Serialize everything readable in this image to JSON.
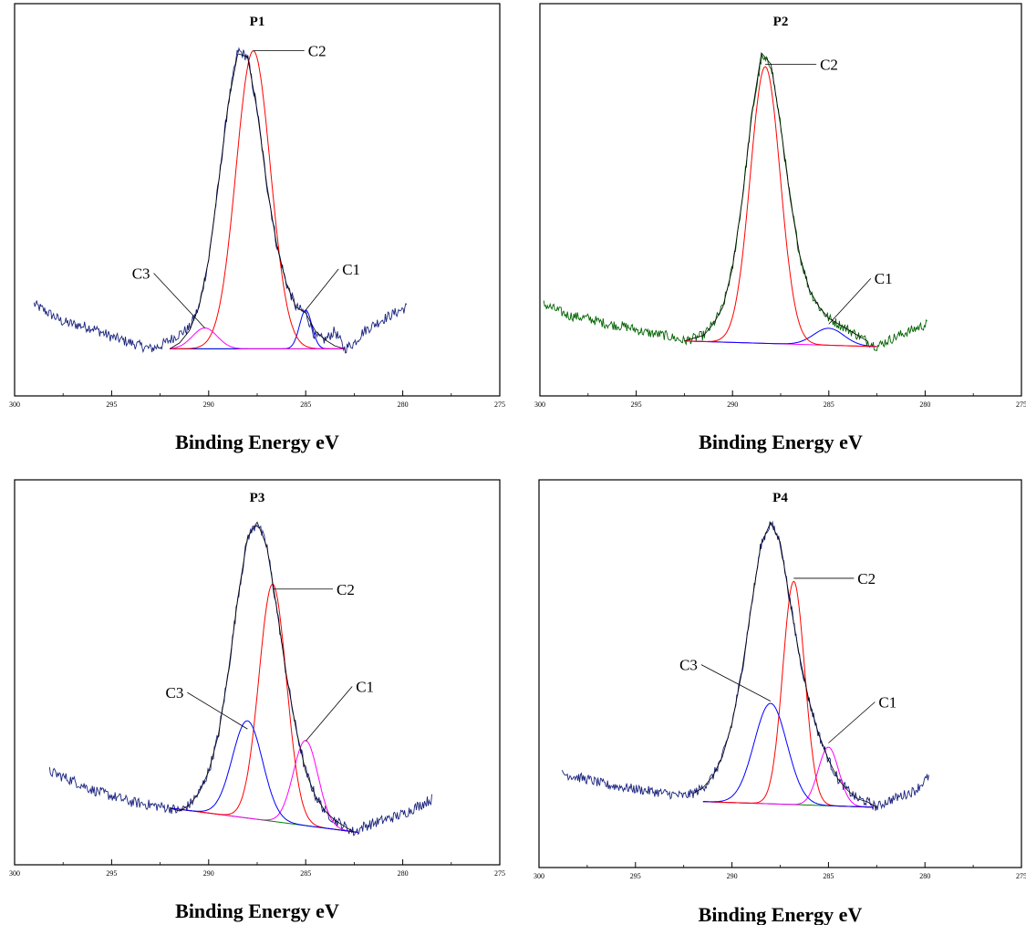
{
  "figure": {
    "colors": {
      "frame": "#000000",
      "text": "#000000"
    }
  },
  "chart_data": [
    {
      "type": "line",
      "title": "P1",
      "xlabel": "Binding Energy eV",
      "ylabel": "",
      "xlim": [
        300,
        275
      ],
      "ylim": [
        0,
        1
      ],
      "xticks": [
        300,
        295,
        290,
        285,
        280,
        275
      ],
      "grid": false,
      "legend": "none",
      "raw": {
        "color": "#1a237e",
        "x": [
          299,
          297.5,
          296,
          295,
          294,
          293,
          292.5,
          292,
          291.5,
          291,
          290.5,
          290,
          289.5,
          289,
          288.5,
          288,
          287.5,
          287,
          286.5,
          286,
          285.5,
          285,
          284.5,
          284,
          283.5,
          283,
          282.5,
          282,
          281,
          279.8
        ],
        "y": [
          0.15,
          0.09,
          0.07,
          0.04,
          0.02,
          0.0,
          0.01,
          0.03,
          0.05,
          0.07,
          0.14,
          0.3,
          0.55,
          0.82,
          1.0,
          0.98,
          0.8,
          0.55,
          0.35,
          0.22,
          0.14,
          0.12,
          0.04,
          0.03,
          0.06,
          0.0,
          0.02,
          0.06,
          0.1,
          0.14
        ]
      },
      "envelope": {
        "color": "#000000",
        "x": [
          292,
          291.5,
          291,
          290.5,
          290,
          289.5,
          289,
          288.5,
          288,
          287.5,
          287,
          286.5,
          286,
          285.5,
          285,
          284.5,
          284,
          283.5,
          283
        ],
        "y": [
          0.0,
          0.02,
          0.06,
          0.14,
          0.3,
          0.55,
          0.82,
          0.99,
          0.98,
          0.8,
          0.55,
          0.35,
          0.22,
          0.14,
          0.12,
          0.06,
          0.03,
          0.01,
          0.0
        ]
      },
      "components": [
        {
          "label": "C1",
          "center": 285.0,
          "height": 0.13,
          "width": 0.45,
          "color": "#0000ff"
        },
        {
          "label": "C2",
          "center": 287.7,
          "height": 1.0,
          "width": 1.25,
          "color": "#ff0000"
        },
        {
          "label": "C3",
          "center": 290.2,
          "height": 0.07,
          "width": 0.9,
          "color": "#ff00ff"
        }
      ],
      "baseline": {
        "color": "#008000",
        "x": [
          292,
          283
        ],
        "y": [
          0.0,
          0.0
        ]
      },
      "annotations": [
        {
          "text": "C2",
          "x": 287.7,
          "y": 1.0
        },
        {
          "text": "C1",
          "x": 285.0,
          "y": 0.13
        },
        {
          "text": "C3",
          "x": 290.2,
          "y": 0.07
        }
      ]
    },
    {
      "type": "line",
      "title": "P2",
      "xlabel": "Binding Energy eV",
      "ylabel": "",
      "xlim": [
        300,
        275
      ],
      "ylim": [
        0,
        1
      ],
      "xticks": [
        300,
        295,
        290,
        285,
        280,
        275
      ],
      "grid": false,
      "legend": "none",
      "raw": {
        "color": "#006400",
        "x": [
          299.8,
          298.5,
          297.5,
          296.5,
          295.5,
          294.5,
          293.5,
          292.5,
          291.5,
          291,
          290.5,
          290,
          289.5,
          289,
          288.5,
          288,
          287.5,
          287,
          286.5,
          286,
          285.5,
          285,
          284.5,
          284,
          283.5,
          283,
          282.5,
          282,
          281,
          279.9
        ],
        "y": [
          0.13,
          0.09,
          0.08,
          0.06,
          0.05,
          0.03,
          0.02,
          0.0,
          0.02,
          0.06,
          0.12,
          0.26,
          0.5,
          0.8,
          1.0,
          0.98,
          0.76,
          0.5,
          0.3,
          0.18,
          0.12,
          0.08,
          0.06,
          0.04,
          0.02,
          0.0,
          -0.02,
          0.0,
          0.03,
          0.06
        ]
      },
      "envelope": {
        "color": "#000000",
        "x": [
          292.5,
          291.5,
          291,
          290.5,
          290,
          289.5,
          289,
          288.5,
          288,
          287.5,
          287,
          286.5,
          286,
          285.5,
          285,
          284.5,
          284,
          283.5,
          283
        ],
        "y": [
          0.0,
          0.02,
          0.06,
          0.12,
          0.26,
          0.5,
          0.8,
          1.02,
          0.98,
          0.76,
          0.5,
          0.3,
          0.18,
          0.12,
          0.08,
          0.06,
          0.04,
          0.02,
          0.0
        ]
      },
      "components": [
        {
          "label": "C1",
          "center": 285.0,
          "height": 0.06,
          "width": 1.1,
          "color": "#0000ff"
        },
        {
          "label": "C2",
          "center": 288.3,
          "height": 0.98,
          "width": 1.1,
          "color": "#ff0000"
        }
      ],
      "baseline": {
        "color": "#ff00ff",
        "x": [
          292.5,
          282.5
        ],
        "y": [
          0.0,
          -0.02
        ]
      },
      "annotations": [
        {
          "text": "C2",
          "x": 288.3,
          "y": 0.98
        },
        {
          "text": "C1",
          "x": 285.0,
          "y": 0.06
        }
      ]
    },
    {
      "type": "line",
      "title": "P3",
      "xlabel": "Binding Energy eV",
      "ylabel": "",
      "xlim": [
        300,
        275
      ],
      "ylim": [
        0,
        1
      ],
      "xticks": [
        300,
        295,
        290,
        285,
        280,
        275
      ],
      "grid": false,
      "legend": "none",
      "raw": {
        "color": "#1a237e",
        "x": [
          298.2,
          297,
          296,
          295,
          294,
          293,
          292,
          291.5,
          291,
          290.5,
          290,
          289.5,
          289,
          288.5,
          288,
          287.5,
          287,
          286.5,
          286,
          285.5,
          285,
          284.5,
          284,
          283.5,
          283,
          282.5,
          282,
          281.5,
          280,
          278.5
        ],
        "y": [
          0.18,
          0.15,
          0.12,
          0.1,
          0.08,
          0.07,
          0.06,
          0.05,
          0.07,
          0.11,
          0.18,
          0.3,
          0.5,
          0.75,
          0.95,
          1.0,
          0.92,
          0.72,
          0.5,
          0.32,
          0.18,
          0.1,
          0.05,
          0.02,
          0.0,
          -0.02,
          0.0,
          0.01,
          0.04,
          0.09
        ]
      },
      "envelope": {
        "color": "#000000",
        "x": [
          292,
          291.5,
          291,
          290.5,
          290,
          289.5,
          289,
          288.5,
          288,
          287.5,
          287,
          286.5,
          286,
          285.5,
          285,
          284.5,
          284,
          283.5,
          283,
          282.5
        ],
        "y": [
          0.06,
          0.05,
          0.07,
          0.11,
          0.18,
          0.3,
          0.5,
          0.75,
          0.95,
          1.0,
          0.92,
          0.72,
          0.5,
          0.32,
          0.18,
          0.1,
          0.05,
          0.02,
          0.0,
          -0.02
        ]
      },
      "components": [
        {
          "label": "C1",
          "center": 285.0,
          "height": 0.28,
          "width": 0.9,
          "color": "#ff00ff"
        },
        {
          "label": "C2",
          "center": 286.7,
          "height": 0.78,
          "width": 1.0,
          "color": "#ff0000"
        },
        {
          "label": "C3",
          "center": 288.0,
          "height": 0.32,
          "width": 1.1,
          "color": "#0000ff"
        }
      ],
      "baseline": {
        "color": "#008000",
        "x": [
          292,
          282.3
        ],
        "y": [
          0.06,
          -0.02
        ]
      },
      "annotations": [
        {
          "text": "C2",
          "x": 286.7,
          "y": 0.78
        },
        {
          "text": "C1",
          "x": 285.0,
          "y": 0.28
        },
        {
          "text": "C3",
          "x": 288.0,
          "y": 0.32
        }
      ]
    },
    {
      "type": "line",
      "title": "P4",
      "xlabel": "Binding Energy eV",
      "ylabel": "",
      "xlim": [
        300,
        275
      ],
      "ylim": [
        0,
        1
      ],
      "xticks": [
        300,
        295,
        290,
        285,
        280,
        275
      ],
      "grid": false,
      "legend": "none",
      "raw": {
        "color": "#1a237e",
        "x": [
          298.8,
          297.5,
          296.5,
          295.5,
          294.5,
          293.5,
          292.5,
          292,
          291.5,
          291,
          290.5,
          290,
          289.5,
          289,
          288.5,
          288,
          287.5,
          287,
          286.5,
          286,
          285.5,
          285,
          284.5,
          284,
          283.5,
          283,
          282.5,
          282,
          280.5,
          279.8
        ],
        "y": [
          0.1,
          0.08,
          0.06,
          0.05,
          0.04,
          0.03,
          0.02,
          0.03,
          0.05,
          0.09,
          0.16,
          0.28,
          0.46,
          0.7,
          0.92,
          1.0,
          0.93,
          0.72,
          0.52,
          0.36,
          0.24,
          0.15,
          0.08,
          0.04,
          0.01,
          0.0,
          -0.02,
          0.0,
          0.04,
          0.09
        ]
      },
      "envelope": {
        "color": "#000000",
        "x": [
          292,
          291.5,
          291,
          290.5,
          290,
          289.5,
          289,
          288.5,
          288,
          287.5,
          287,
          286.5,
          286,
          285.5,
          285,
          284.5,
          284,
          283.5,
          283,
          282.5
        ],
        "y": [
          0.03,
          0.05,
          0.09,
          0.16,
          0.28,
          0.46,
          0.7,
          0.92,
          1.0,
          0.93,
          0.72,
          0.52,
          0.36,
          0.24,
          0.15,
          0.08,
          0.04,
          0.01,
          0.0,
          -0.02
        ]
      },
      "components": [
        {
          "label": "C1",
          "center": 285.0,
          "height": 0.21,
          "width": 0.75,
          "color": "#ff00ff"
        },
        {
          "label": "C2",
          "center": 286.8,
          "height": 0.8,
          "width": 0.8,
          "color": "#ff0000"
        },
        {
          "label": "C3",
          "center": 288.0,
          "height": 0.36,
          "width": 1.2,
          "color": "#0000ff"
        }
      ],
      "baseline": {
        "color": "#008000",
        "x": [
          291.5,
          282.7
        ],
        "y": [
          0.0,
          -0.02
        ]
      },
      "annotations": [
        {
          "text": "C2",
          "x": 286.8,
          "y": 0.8
        },
        {
          "text": "C1",
          "x": 285.0,
          "y": 0.21
        },
        {
          "text": "C3",
          "x": 288.0,
          "y": 0.36
        }
      ]
    }
  ]
}
